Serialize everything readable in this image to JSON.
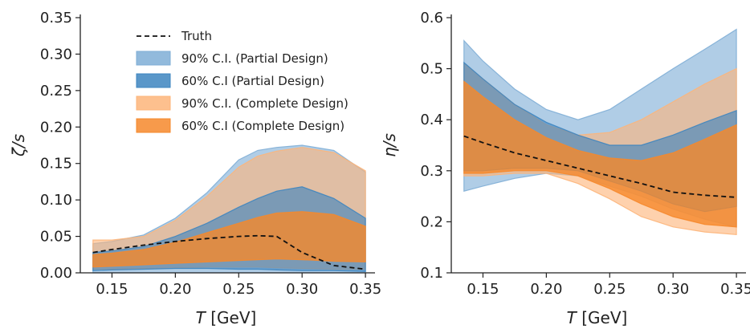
{
  "colors": {
    "blue90": "#7FAED6",
    "blue60": "#3D85C0",
    "orange90": "#FDB57A",
    "orange60": "#F6882B",
    "truth": "#111111"
  },
  "chart_data": [
    {
      "type": "area",
      "xlabel_var": "T",
      "xlabel_unit": "[GeV]",
      "ylabel": "ζ/s",
      "xlim": [
        0.125,
        0.355
      ],
      "ylim": [
        0.0,
        0.35
      ],
      "xticks": [
        0.15,
        0.2,
        0.25,
        0.3,
        0.35
      ],
      "xtick_labels": [
        "0.15",
        "0.20",
        "0.25",
        "0.30",
        "0.35"
      ],
      "yticks": [
        0.0,
        0.05,
        0.1,
        0.15,
        0.2,
        0.25,
        0.3,
        0.35
      ],
      "ytick_labels": [
        "0.00",
        "0.05",
        "0.10",
        "0.15",
        "0.20",
        "0.25",
        "0.30",
        "0.35"
      ],
      "legend": {
        "placement": "upper-left",
        "entries": [
          {
            "key": "truth",
            "label": "Truth",
            "style": "dashed-line",
            "color": "#111111"
          },
          {
            "key": "blue90",
            "label": "90% C.I. (Partial Design)",
            "style": "patch",
            "color": "#7FAED6"
          },
          {
            "key": "blue60",
            "label": "60% C.I (Partial Design)",
            "style": "patch",
            "color": "#3D85C0"
          },
          {
            "key": "orange90",
            "label": "90% C.I. (Complete Design)",
            "style": "patch",
            "color": "#FDB57A"
          },
          {
            "key": "orange60",
            "label": "60% C.I (Complete Design)",
            "style": "patch",
            "color": "#F6882B"
          }
        ]
      },
      "x": [
        0.135,
        0.15,
        0.175,
        0.2,
        0.225,
        0.25,
        0.265,
        0.28,
        0.3,
        0.325,
        0.35
      ],
      "series": [
        {
          "key": "blue90",
          "lower": [
            0.0,
            0.0,
            0.0,
            0.0,
            0.0,
            0.0,
            0.0,
            0.0,
            0.0,
            0.0,
            0.0
          ],
          "upper": [
            0.04,
            0.043,
            0.052,
            0.075,
            0.11,
            0.155,
            0.168,
            0.172,
            0.175,
            0.168,
            0.138
          ]
        },
        {
          "key": "orange90",
          "lower": [
            0.005,
            0.005,
            0.006,
            0.007,
            0.008,
            0.008,
            0.008,
            0.007,
            0.006,
            0.005,
            0.005
          ],
          "upper": [
            0.045,
            0.045,
            0.05,
            0.072,
            0.105,
            0.145,
            0.16,
            0.167,
            0.172,
            0.165,
            0.14
          ]
        },
        {
          "key": "blue60",
          "lower": [
            0.003,
            0.004,
            0.005,
            0.006,
            0.006,
            0.005,
            0.005,
            0.004,
            0.003,
            0.003,
            0.002
          ],
          "upper": [
            0.028,
            0.03,
            0.036,
            0.05,
            0.068,
            0.09,
            0.102,
            0.112,
            0.118,
            0.102,
            0.075
          ]
        },
        {
          "key": "orange60",
          "lower": [
            0.008,
            0.009,
            0.011,
            0.013,
            0.015,
            0.017,
            0.018,
            0.019,
            0.018,
            0.016,
            0.015
          ],
          "upper": [
            0.025,
            0.027,
            0.032,
            0.042,
            0.055,
            0.068,
            0.076,
            0.082,
            0.084,
            0.08,
            0.064
          ]
        },
        {
          "key": "truth",
          "line": [
            0.028,
            0.032,
            0.038,
            0.043,
            0.047,
            0.05,
            0.051,
            0.05,
            0.028,
            0.01,
            0.005
          ]
        }
      ]
    },
    {
      "type": "area",
      "xlabel_var": "T",
      "xlabel_unit": "[GeV]",
      "ylabel": "η/s",
      "xlim": [
        0.125,
        0.355
      ],
      "ylim": [
        0.1,
        0.6
      ],
      "xticks": [
        0.15,
        0.2,
        0.25,
        0.3,
        0.35
      ],
      "xtick_labels": [
        "0.15",
        "0.20",
        "0.25",
        "0.30",
        "0.35"
      ],
      "yticks": [
        0.1,
        0.2,
        0.3,
        0.4,
        0.5,
        0.6
      ],
      "ytick_labels": [
        "0.1",
        "0.2",
        "0.3",
        "0.4",
        "0.5",
        "0.6"
      ],
      "x": [
        0.135,
        0.15,
        0.175,
        0.2,
        0.225,
        0.25,
        0.275,
        0.3,
        0.325,
        0.35
      ],
      "series": [
        {
          "key": "blue90",
          "lower": [
            0.26,
            0.27,
            0.285,
            0.295,
            0.29,
            0.27,
            0.25,
            0.225,
            0.205,
            0.19
          ],
          "upper": [
            0.555,
            0.515,
            0.46,
            0.42,
            0.4,
            0.42,
            0.46,
            0.5,
            0.538,
            0.577
          ]
        },
        {
          "key": "orange90",
          "lower": [
            0.29,
            0.29,
            0.295,
            0.295,
            0.275,
            0.245,
            0.21,
            0.19,
            0.18,
            0.175
          ],
          "upper": [
            0.51,
            0.48,
            0.43,
            0.39,
            0.37,
            0.375,
            0.4,
            0.435,
            0.47,
            0.5
          ]
        },
        {
          "key": "blue60",
          "lower": [
            0.3,
            0.3,
            0.305,
            0.305,
            0.3,
            0.28,
            0.26,
            0.235,
            0.22,
            0.23
          ],
          "upper": [
            0.512,
            0.48,
            0.43,
            0.395,
            0.37,
            0.35,
            0.35,
            0.37,
            0.395,
            0.418
          ]
        },
        {
          "key": "orange60",
          "lower": [
            0.295,
            0.295,
            0.3,
            0.3,
            0.29,
            0.265,
            0.235,
            0.21,
            0.195,
            0.19
          ],
          "upper": [
            0.475,
            0.445,
            0.4,
            0.365,
            0.34,
            0.325,
            0.32,
            0.335,
            0.362,
            0.39
          ]
        },
        {
          "key": "truth",
          "line": [
            0.368,
            0.355,
            0.335,
            0.32,
            0.305,
            0.29,
            0.275,
            0.258,
            0.252,
            0.248
          ]
        }
      ]
    }
  ]
}
